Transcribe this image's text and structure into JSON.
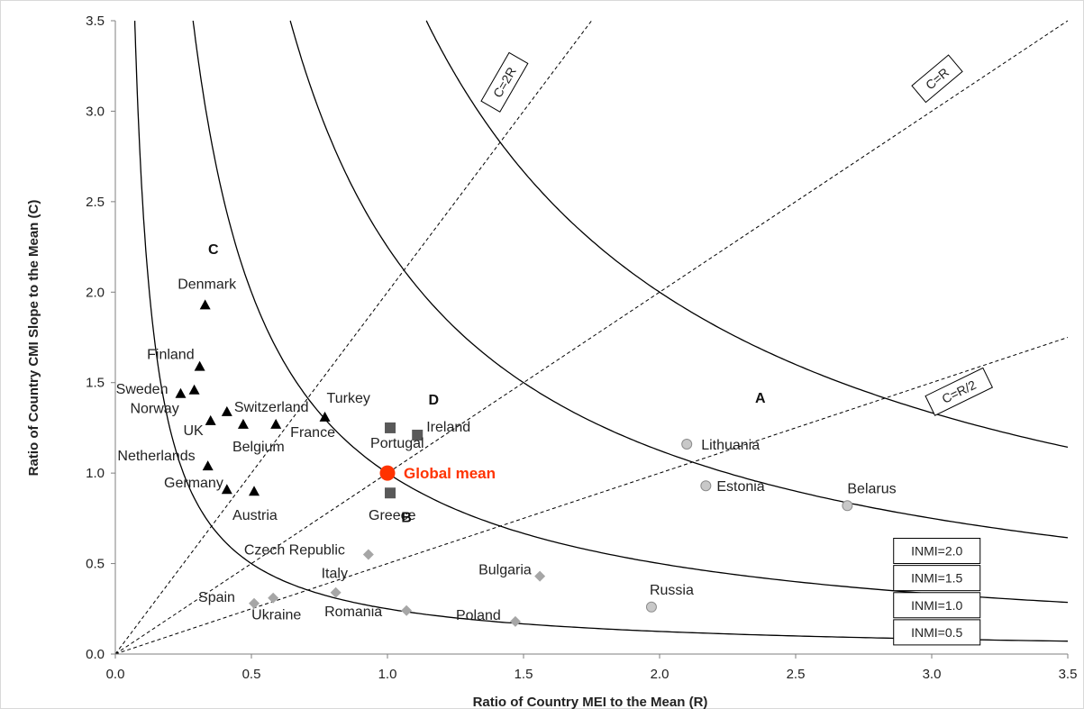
{
  "chart_data": {
    "type": "scatter",
    "xlabel": "Ratio of Country MEI to the Mean (R)",
    "ylabel": "Ratio of Country CMI Slope to the Mean (C)",
    "xlim": [
      0,
      3.5
    ],
    "ylim": [
      0,
      3.5
    ],
    "x_ticks": [
      "0.0",
      "0.5",
      "1.0",
      "1.5",
      "2.0",
      "2.5",
      "3.0",
      "3.5"
    ],
    "y_ticks": [
      "0.0",
      "0.5",
      "1.0",
      "1.5",
      "2.0",
      "2.5",
      "3.0",
      "3.5"
    ],
    "grid": false,
    "series": [
      {
        "marker": "triangle",
        "color": "#000000",
        "points": [
          {
            "label": "Denmark",
            "x": 0.33,
            "y": 1.93
          },
          {
            "label": "Finland",
            "x": 0.31,
            "y": 1.59
          },
          {
            "label": "Sweden",
            "x": 0.24,
            "y": 1.44
          },
          {
            "label": "Norway",
            "x": 0.29,
            "y": 1.46
          },
          {
            "label": "Switzerland",
            "x": 0.41,
            "y": 1.34
          },
          {
            "label": "UK",
            "x": 0.35,
            "y": 1.29
          },
          {
            "label": "Belgium",
            "x": 0.47,
            "y": 1.27
          },
          {
            "label": "France",
            "x": 0.59,
            "y": 1.27
          },
          {
            "label": "Turkey",
            "x": 0.77,
            "y": 1.31
          },
          {
            "label": "Netherlands",
            "x": 0.34,
            "y": 1.04
          },
          {
            "label": "Germany",
            "x": 0.41,
            "y": 0.91
          },
          {
            "label": "Austria",
            "x": 0.51,
            "y": 0.9
          }
        ]
      },
      {
        "marker": "square",
        "color": "#595959",
        "points": [
          {
            "label": "Portugal",
            "x": 1.01,
            "y": 1.25
          },
          {
            "label": "Ireland",
            "x": 1.11,
            "y": 1.21
          },
          {
            "label": "Greece",
            "x": 1.01,
            "y": 0.89
          }
        ]
      },
      {
        "marker": "circle",
        "color": "#c8c8c8",
        "points": [
          {
            "label": "Lithuania",
            "x": 2.1,
            "y": 1.16
          },
          {
            "label": "Estonia",
            "x": 2.17,
            "y": 0.93
          },
          {
            "label": "Belarus",
            "x": 2.69,
            "y": 0.82
          },
          {
            "label": "Russia",
            "x": 1.97,
            "y": 0.26
          }
        ]
      },
      {
        "marker": "diamond",
        "color": "#a6a6a6",
        "points": [
          {
            "label": "Czech Republic",
            "x": 0.93,
            "y": 0.55
          },
          {
            "label": "Bulgaria",
            "x": 1.56,
            "y": 0.43
          },
          {
            "label": "Italy",
            "x": 0.81,
            "y": 0.34
          },
          {
            "label": "Spain",
            "x": 0.51,
            "y": 0.28
          },
          {
            "label": "Ukraine",
            "x": 0.58,
            "y": 0.31
          },
          {
            "label": "Romania",
            "x": 1.07,
            "y": 0.24
          },
          {
            "label": "Poland",
            "x": 1.47,
            "y": 0.18
          }
        ]
      }
    ],
    "highlight": {
      "label": "Global mean",
      "x": 1.0,
      "y": 1.0,
      "color": "#ff3300"
    },
    "reference_lines": [
      {
        "label": "C=2R",
        "slope": 2
      },
      {
        "label": "C=R",
        "slope": 1
      },
      {
        "label": "C=R/2",
        "slope": 0.5
      }
    ],
    "inmi_curves": [
      {
        "label": "INMI=2.0",
        "value": 2.0
      },
      {
        "label": "INMI=1.5",
        "value": 1.5
      },
      {
        "label": "INMI=1.0",
        "value": 1.0
      },
      {
        "label": "INMI=0.5",
        "value": 0.5
      }
    ],
    "regions": [
      {
        "label": "A",
        "x": 2.37,
        "y": 1.39
      },
      {
        "label": "B",
        "x": 1.07,
        "y": 0.73
      },
      {
        "label": "C",
        "x": 0.36,
        "y": 2.21
      },
      {
        "label": "D",
        "x": 1.17,
        "y": 1.38
      }
    ]
  }
}
